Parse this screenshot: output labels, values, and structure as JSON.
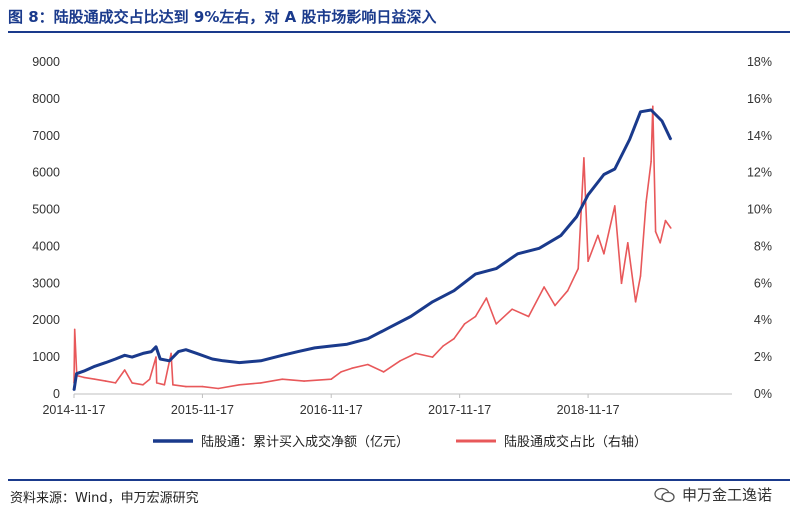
{
  "title": "图 8：陆股通成交占比达到 9%左右，对 A 股市场影响日益深入",
  "source": "资料来源：Wind，申万宏源研究",
  "watermark": "申万金工逸诺",
  "chart_data": {
    "type": "line",
    "x_ticks": [
      "2014-11-17",
      "2015-11-17",
      "2016-11-17",
      "2017-11-17",
      "2018-11-17"
    ],
    "x_range": [
      "2014-11-17",
      "2019-12-31"
    ],
    "y_left_ticks": [
      0,
      1000,
      2000,
      3000,
      4000,
      5000,
      6000,
      7000,
      8000,
      9000
    ],
    "y_left_range": [
      0,
      9000
    ],
    "y_right_ticks": [
      "0%",
      "2%",
      "4%",
      "6%",
      "8%",
      "10%",
      "12%",
      "14%",
      "16%",
      "18%"
    ],
    "y_right_range": [
      0,
      18
    ],
    "grid": false,
    "legend_position": "bottom",
    "series": [
      {
        "name": "陆股通：累计买入成交净额（亿元）",
        "axis": "left",
        "color": "#1a3a8c",
        "points": [
          [
            "2014-11-17",
            100
          ],
          [
            "2014-11-24",
            550
          ],
          [
            "2014-12-15",
            620
          ],
          [
            "2015-01-15",
            750
          ],
          [
            "2015-02-15",
            850
          ],
          [
            "2015-03-15",
            950
          ],
          [
            "2015-04-10",
            1050
          ],
          [
            "2015-05-01",
            1000
          ],
          [
            "2015-06-01",
            1100
          ],
          [
            "2015-06-25",
            1150
          ],
          [
            "2015-07-08",
            1280
          ],
          [
            "2015-07-20",
            950
          ],
          [
            "2015-08-15",
            900
          ],
          [
            "2015-09-10",
            1150
          ],
          [
            "2015-10-01",
            1200
          ],
          [
            "2015-11-01",
            1100
          ],
          [
            "2015-12-15",
            950
          ],
          [
            "2016-01-15",
            900
          ],
          [
            "2016-03-01",
            850
          ],
          [
            "2016-05-01",
            900
          ],
          [
            "2016-07-01",
            1050
          ],
          [
            "2016-08-15",
            1150
          ],
          [
            "2016-10-01",
            1250
          ],
          [
            "2016-11-17",
            1300
          ],
          [
            "2017-01-01",
            1350
          ],
          [
            "2017-03-01",
            1500
          ],
          [
            "2017-05-01",
            1800
          ],
          [
            "2017-07-01",
            2100
          ],
          [
            "2017-09-01",
            2500
          ],
          [
            "2017-11-01",
            2800
          ],
          [
            "2018-01-01",
            3250
          ],
          [
            "2018-03-01",
            3400
          ],
          [
            "2018-05-01",
            3800
          ],
          [
            "2018-07-01",
            3950
          ],
          [
            "2018-09-01",
            4300
          ],
          [
            "2018-10-15",
            4800
          ],
          [
            "2018-11-17",
            5400
          ],
          [
            "2019-01-01",
            5950
          ],
          [
            "2019-02-01",
            6100
          ],
          [
            "2019-03-15",
            6900
          ],
          [
            "2019-04-15",
            7650
          ],
          [
            "2019-05-15",
            7700
          ],
          [
            "2019-06-15",
            7400
          ],
          [
            "2019-07-10",
            6900
          ]
        ]
      },
      {
        "name": "陆股通成交占比（右轴）",
        "axis": "right",
        "color": "#e8585a",
        "points": [
          [
            "2014-11-17",
            0.6
          ],
          [
            "2014-11-19",
            3.5
          ],
          [
            "2014-11-25",
            1.0
          ],
          [
            "2014-12-15",
            0.9
          ],
          [
            "2015-01-15",
            0.8
          ],
          [
            "2015-02-15",
            0.7
          ],
          [
            "2015-03-15",
            0.6
          ],
          [
            "2015-04-10",
            1.3
          ],
          [
            "2015-05-01",
            0.6
          ],
          [
            "2015-06-01",
            0.5
          ],
          [
            "2015-06-20",
            0.8
          ],
          [
            "2015-07-08",
            2.0
          ],
          [
            "2015-07-10",
            0.6
          ],
          [
            "2015-08-01",
            0.5
          ],
          [
            "2015-08-20",
            2.2
          ],
          [
            "2015-08-25",
            0.5
          ],
          [
            "2015-10-01",
            0.4
          ],
          [
            "2015-11-17",
            0.4
          ],
          [
            "2016-01-01",
            0.3
          ],
          [
            "2016-03-01",
            0.5
          ],
          [
            "2016-05-01",
            0.6
          ],
          [
            "2016-07-01",
            0.8
          ],
          [
            "2016-09-01",
            0.7
          ],
          [
            "2016-11-17",
            0.8
          ],
          [
            "2016-12-15",
            1.2
          ],
          [
            "2017-01-15",
            1.4
          ],
          [
            "2017-03-01",
            1.6
          ],
          [
            "2017-04-15",
            1.2
          ],
          [
            "2017-06-01",
            1.8
          ],
          [
            "2017-07-15",
            2.2
          ],
          [
            "2017-09-01",
            2.0
          ],
          [
            "2017-10-01",
            2.6
          ],
          [
            "2017-11-01",
            3.0
          ],
          [
            "2017-12-01",
            3.8
          ],
          [
            "2018-01-01",
            4.2
          ],
          [
            "2018-02-01",
            5.2
          ],
          [
            "2018-03-01",
            3.8
          ],
          [
            "2018-04-15",
            4.6
          ],
          [
            "2018-06-01",
            4.2
          ],
          [
            "2018-07-15",
            5.8
          ],
          [
            "2018-08-15",
            4.8
          ],
          [
            "2018-09-20",
            5.6
          ],
          [
            "2018-10-20",
            6.8
          ],
          [
            "2018-11-05",
            12.8
          ],
          [
            "2018-11-17",
            7.2
          ],
          [
            "2018-12-15",
            8.6
          ],
          [
            "2019-01-01",
            7.6
          ],
          [
            "2019-02-01",
            10.2
          ],
          [
            "2019-02-20",
            6.0
          ],
          [
            "2019-03-10",
            8.2
          ],
          [
            "2019-04-01",
            5.0
          ],
          [
            "2019-04-15",
            6.4
          ],
          [
            "2019-05-01",
            10.4
          ],
          [
            "2019-05-15",
            12.6
          ],
          [
            "2019-05-20",
            15.6
          ],
          [
            "2019-05-28",
            8.8
          ],
          [
            "2019-06-10",
            8.2
          ],
          [
            "2019-06-25",
            9.4
          ],
          [
            "2019-07-10",
            9.0
          ]
        ]
      }
    ]
  }
}
